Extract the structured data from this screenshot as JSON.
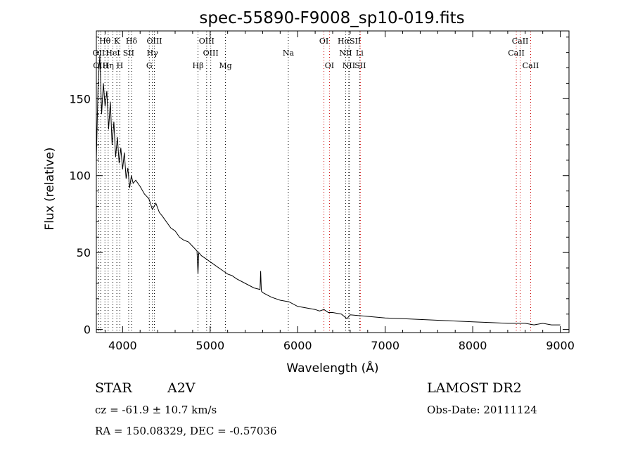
{
  "chart_data": {
    "type": "line",
    "title": "spec-55890-F9008_sp10-019.fits",
    "xlabel": "Wavelength (Å)",
    "ylabel": "Flux (relative)",
    "xlim": [
      3700,
      9100
    ],
    "ylim": [
      -2,
      194
    ],
    "xticks": [
      4000,
      5000,
      6000,
      7000,
      8000,
      9000
    ],
    "yticks": [
      0,
      50,
      100,
      150
    ],
    "grid": false,
    "series": [
      {
        "x": [
          3700,
          3720,
          3740,
          3760,
          3780,
          3800,
          3820,
          3840,
          3860,
          3880,
          3900,
          3920,
          3940,
          3960,
          3980,
          4000,
          4020,
          4040,
          4060,
          4080,
          4100,
          4120,
          4150,
          4200,
          4250,
          4300,
          4340,
          4380,
          4420,
          4450,
          4500,
          4550,
          4600,
          4650,
          4700,
          4750,
          4800,
          4850,
          4861,
          4870,
          4900,
          4950,
          5000,
          5050,
          5100,
          5150,
          5200,
          5250,
          5300,
          5400,
          5500,
          5570,
          5577,
          5585,
          5600,
          5700,
          5800,
          5900,
          6000,
          6100,
          6200,
          6250,
          6300,
          6350,
          6400,
          6500,
          6563,
          6600,
          6700,
          6800,
          6900,
          7000,
          7200,
          7400,
          7600,
          7800,
          8000,
          8200,
          8400,
          8600,
          8700,
          8800,
          8900,
          9000
        ],
        "y": [
          110,
          160,
          178,
          140,
          160,
          145,
          155,
          130,
          148,
          120,
          135,
          112,
          125,
          108,
          118,
          104,
          115,
          98,
          105,
          92,
          100,
          95,
          97,
          93,
          88,
          85,
          78,
          82,
          76,
          74,
          70,
          66,
          64,
          60,
          58,
          57,
          54,
          51,
          36,
          50,
          48,
          46,
          44,
          42,
          40,
          38,
          36,
          35,
          33,
          30,
          27,
          26,
          38,
          25,
          24,
          21,
          19,
          18,
          15,
          14,
          13,
          12,
          13,
          11,
          11,
          10,
          7,
          9.5,
          9,
          8.5,
          8,
          7.5,
          7,
          6.5,
          6,
          5.5,
          5,
          4.5,
          4,
          4,
          3,
          4,
          3,
          3
        ]
      }
    ],
    "line_markers": [
      {
        "label": "Hθ",
        "x": 3798,
        "row": 0,
        "color": "#000000"
      },
      {
        "label": "K",
        "x": 3934,
        "row": 0,
        "color": "#000000"
      },
      {
        "label": "Hδ",
        "x": 4102,
        "row": 0,
        "color": "#000000"
      },
      {
        "label": "OIII",
        "x": 4363,
        "row": 0,
        "color": "#000000"
      },
      {
        "label": "OIII",
        "x": 4960,
        "row": 0,
        "color": "#000000"
      },
      {
        "label": "OI",
        "x": 6300,
        "row": 0,
        "color": "#cc0000"
      },
      {
        "label": "HαSII",
        "x": 6590,
        "row": 0,
        "color": "#000000"
      },
      {
        "label": "CaII",
        "x": 8542,
        "row": 0,
        "color": "#cc0000"
      },
      {
        "label": "OII",
        "x": 3727,
        "row": 1,
        "color": "#000000"
      },
      {
        "label": "HeI",
        "x": 3889,
        "row": 1,
        "color": "#000000"
      },
      {
        "label": "SII",
        "x": 4069,
        "row": 1,
        "color": "#000000"
      },
      {
        "label": "Hγ",
        "x": 4340,
        "row": 1,
        "color": "#000000"
      },
      {
        "label": "OIII",
        "x": 5007,
        "row": 1,
        "color": "#000000"
      },
      {
        "label": "Na",
        "x": 5893,
        "row": 1,
        "color": "#000000"
      },
      {
        "label": "NII",
        "x": 6548,
        "row": 1,
        "color": "#000000"
      },
      {
        "label": "Li",
        "x": 6708,
        "row": 1,
        "color": "#000000"
      },
      {
        "label": "CaII",
        "x": 8498,
        "row": 1,
        "color": "#cc0000"
      },
      {
        "label": "OIII",
        "x": 3750,
        "row": 2,
        "color": "#000000"
      },
      {
        "label": "Hη",
        "x": 3835,
        "row": 2,
        "color": "#000000"
      },
      {
        "label": "H",
        "x": 3969,
        "row": 2,
        "color": "#000000"
      },
      {
        "label": "G",
        "x": 4305,
        "row": 2,
        "color": "#000000"
      },
      {
        "label": "Hβ",
        "x": 4861,
        "row": 2,
        "color": "#000000"
      },
      {
        "label": "Mg",
        "x": 5175,
        "row": 2,
        "color": "#000000"
      },
      {
        "label": "OI",
        "x": 6363,
        "row": 2,
        "color": "#cc0000"
      },
      {
        "label": "NII",
        "x": 6584,
        "row": 2,
        "color": "#000000"
      },
      {
        "label": "SII",
        "x": 6716,
        "row": 2,
        "color": "#cc0000"
      },
      {
        "label": "CaII",
        "x": 8662,
        "row": 2,
        "color": "#cc0000"
      }
    ]
  },
  "info": {
    "class_label": "STAR",
    "subclass": "A2V",
    "cz_line": "cz = -61.9 ± 10.7 km/s",
    "coords_line": "RA = 150.08329, DEC =  -0.57036",
    "survey": "LAMOST DR2",
    "obs_date_line": "Obs-Date: 20111124"
  }
}
